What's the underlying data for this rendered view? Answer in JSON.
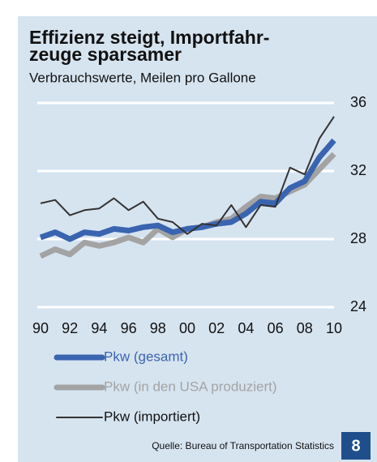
{
  "chart_data": {
    "type": "line",
    "title": [
      "Effizienz steigt, Importfahr-",
      "zeuge sparsamer"
    ],
    "subtitle": "Verbrauchswerte, Meilen pro Gallone",
    "categories": [
      "90",
      null,
      "92",
      null,
      "94",
      null,
      "96",
      null,
      "98",
      null,
      "00",
      null,
      "02",
      null,
      "04",
      null,
      "06",
      null,
      "08",
      null,
      "10"
    ],
    "series": [
      {
        "name": "Pkw (gesamt)",
        "color": "#3a64b0",
        "width": 7,
        "values": [
          28.1,
          28.4,
          28.0,
          28.4,
          28.3,
          28.6,
          28.5,
          28.7,
          28.8,
          28.4,
          28.6,
          28.7,
          28.9,
          29.0,
          29.5,
          30.2,
          30.1,
          31.0,
          31.4,
          32.8,
          33.8
        ]
      },
      {
        "name": "Pkw (in den USA produziert)",
        "color": "#a3a3a3",
        "width": 7,
        "values": [
          27.0,
          27.4,
          27.1,
          27.8,
          27.6,
          27.8,
          28.1,
          27.8,
          28.6,
          28.1,
          28.6,
          28.7,
          29.0,
          29.2,
          29.9,
          30.5,
          30.4,
          30.8,
          31.2,
          32.1,
          33.0
        ]
      },
      {
        "name": "Pkw (importiert)",
        "color": "#333333",
        "width": 2,
        "values": [
          30.1,
          30.3,
          29.4,
          29.7,
          29.8,
          30.4,
          29.7,
          30.2,
          29.2,
          29.0,
          28.3,
          28.9,
          28.8,
          30.0,
          28.7,
          30.0,
          29.9,
          32.2,
          31.8,
          33.9,
          35.2
        ]
      }
    ],
    "ylim": [
      24,
      36
    ],
    "yticks": [
      24,
      28,
      32,
      36
    ],
    "grid": true,
    "source": "Quelle: Bureau of Transportation Statistics",
    "page_number": "8"
  }
}
